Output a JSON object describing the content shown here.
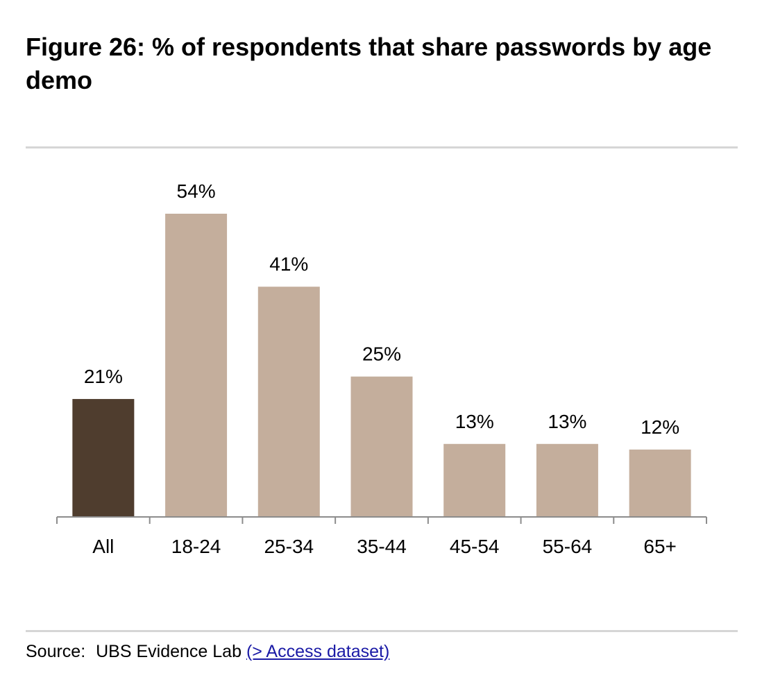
{
  "title": "Figure 26: % of respondents that share passwords by age demo",
  "chart_data": {
    "type": "bar",
    "categories": [
      "All",
      "18-24",
      "25-34",
      "35-44",
      "45-54",
      "55-64",
      "65+"
    ],
    "values": [
      21,
      54,
      41,
      25,
      13,
      13,
      12
    ],
    "data_labels": [
      "21%",
      "54%",
      "41%",
      "25%",
      "13%",
      "13%",
      "12%"
    ],
    "colors": [
      "#4f3d2e",
      "#c4ae9c",
      "#c4ae9c",
      "#c4ae9c",
      "#c4ae9c",
      "#c4ae9c",
      "#c4ae9c"
    ],
    "ylim": [
      0,
      54
    ],
    "grid": false,
    "legend": "none"
  },
  "source": {
    "label": "Source:",
    "text": "UBS Evidence Lab",
    "link": "(> Access dataset)"
  }
}
